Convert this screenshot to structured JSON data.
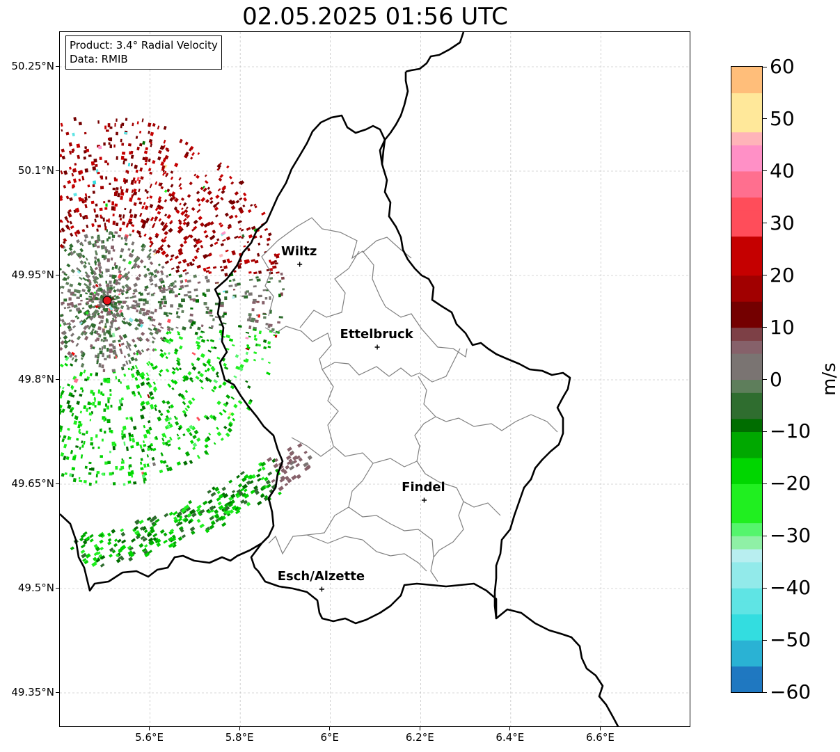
{
  "title": "02.05.2025 01:56 UTC",
  "info_box": {
    "product": "Product: 3.4° Radial Velocity",
    "data_source": "Data: RMIB"
  },
  "map": {
    "lon_range": [
      5.4,
      6.8
    ],
    "lat_range": [
      49.3,
      50.3
    ],
    "lat_ticks": [
      {
        "value": 50.25,
        "label": "50.25°N"
      },
      {
        "value": 50.1,
        "label": "50.1°N"
      },
      {
        "value": 49.95,
        "label": "49.95°N"
      },
      {
        "value": 49.8,
        "label": "49.8°N"
      },
      {
        "value": 49.65,
        "label": "49.65°N"
      },
      {
        "value": 49.5,
        "label": "49.5°N"
      },
      {
        "value": 49.35,
        "label": "49.35°N"
      }
    ],
    "lon_ticks": [
      {
        "value": 5.6,
        "label": "5.6°E"
      },
      {
        "value": 5.8,
        "label": "5.8°E"
      },
      {
        "value": 6.0,
        "label": "6°E"
      },
      {
        "value": 6.2,
        "label": "6.2°E"
      },
      {
        "value": 6.4,
        "label": "6.4°E"
      },
      {
        "value": 6.6,
        "label": "6.6°E"
      }
    ],
    "gridlines": true,
    "radar_site": {
      "lon": 5.505,
      "lat": 49.914,
      "color": "#e8141b"
    },
    "cities": [
      {
        "name": "Wiltz",
        "lon": 5.932,
        "lat": 49.966
      },
      {
        "name": "Ettelbruck",
        "lon": 6.104,
        "lat": 49.847
      },
      {
        "name": "Findel",
        "lon": 6.208,
        "lat": 49.627
      },
      {
        "name": "Esch/Alzette",
        "lon": 5.981,
        "lat": 49.499
      }
    ],
    "colors": {
      "border": "#000000",
      "canton_border": "#808080",
      "grid": "#b0b0b0"
    }
  },
  "colorbar": {
    "unit": "m/s",
    "min": -60,
    "max": 60,
    "ticks": [
      {
        "value": 60,
        "label": "60"
      },
      {
        "value": 50,
        "label": "50"
      },
      {
        "value": 40,
        "label": "40"
      },
      {
        "value": 30,
        "label": "30"
      },
      {
        "value": 20,
        "label": "20"
      },
      {
        "value": 10,
        "label": "10"
      },
      {
        "value": 0,
        "label": "0"
      },
      {
        "value": -10,
        "label": "−10"
      },
      {
        "value": -20,
        "label": "−20"
      },
      {
        "value": -30,
        "label": "−30"
      },
      {
        "value": -40,
        "label": "−40"
      },
      {
        "value": -50,
        "label": "−50"
      },
      {
        "value": -60,
        "label": "−60"
      }
    ],
    "stops": [
      {
        "value": -60,
        "color": "#1f78c1"
      },
      {
        "value": -55,
        "color": "#2ab2d4"
      },
      {
        "value": -50,
        "color": "#33dde0"
      },
      {
        "value": -45,
        "color": "#5fe4e4"
      },
      {
        "value": -40,
        "color": "#92eaea"
      },
      {
        "value": -35,
        "color": "#b8eef0"
      },
      {
        "value": -32,
        "color": "#8ff0a6"
      },
      {
        "value": -30,
        "color": "#55f56d"
      },
      {
        "value": -27,
        "color": "#20ef20"
      },
      {
        "value": -20,
        "color": "#00d600"
      },
      {
        "value": -15,
        "color": "#00a800"
      },
      {
        "value": -10,
        "color": "#006d00"
      },
      {
        "value": -7,
        "color": "#2f6d2f"
      },
      {
        "value": -3,
        "color": "#5e7e5b"
      },
      {
        "value": 0,
        "color": "#7a7472"
      },
      {
        "value": 4,
        "color": "#86616a"
      },
      {
        "value": 8,
        "color": "#7d4046"
      },
      {
        "value": 9,
        "color": "#740000"
      },
      {
        "value": 15,
        "color": "#a10000"
      },
      {
        "value": 20,
        "color": "#c50000"
      },
      {
        "value": 27,
        "color": "#f20a0a"
      },
      {
        "value": 28,
        "color": "#ff4d5a"
      },
      {
        "value": 35,
        "color": "#ff6f8f"
      },
      {
        "value": 40,
        "color": "#ff90c6"
      },
      {
        "value": 44,
        "color": "#ffb4b9"
      },
      {
        "value": 47,
        "color": "#ffe89a"
      },
      {
        "value": 55,
        "color": "#ffbe7a"
      },
      {
        "value": 60,
        "color": "#ff9a55"
      }
    ]
  }
}
